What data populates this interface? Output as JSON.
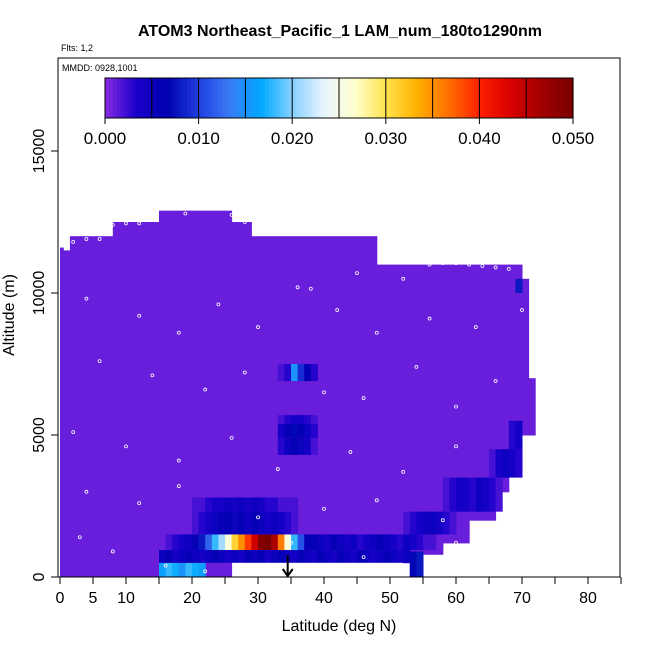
{
  "chart_data": {
    "type": "heatmap",
    "title": "ATOM3 Northeast_Pacific_1 LAM_num_180to1290nm",
    "flights_label": "Flts: 1,2",
    "date_label": "MMDD: 0928,1001",
    "xlabel": "Latitude (deg N)",
    "ylabel": "Altitude (m)",
    "xlim": [
      0,
      85
    ],
    "ylim": [
      0,
      17500
    ],
    "x_ticks": [
      0,
      5,
      10,
      20,
      30,
      40,
      50,
      60,
      70,
      80
    ],
    "x_minor_ticks": [
      15,
      25,
      35,
      45,
      55,
      65,
      75,
      85
    ],
    "y_ticks": [
      0,
      5000,
      10000,
      15000
    ],
    "colorbar": {
      "min": 0.0,
      "max": 0.05,
      "tick_values": [
        0.0,
        0.01,
        0.02,
        0.03,
        0.04,
        0.05
      ],
      "tick_labels": [
        "0.000",
        "0.010",
        "0.020",
        "0.030",
        "0.040",
        "0.050"
      ],
      "colors": [
        "#8a2be2",
        "#1a00cc",
        "#0000b0",
        "#1f3fe0",
        "#3a7bf5",
        "#00a8ff",
        "#86d0ff",
        "#e8f4ff",
        "#ffffd0",
        "#ffe34d",
        "#ffb000",
        "#ff7000",
        "#ff2000",
        "#d90000",
        "#a00000",
        "#7a0000"
      ]
    },
    "background_value": 0.001,
    "coverage": [
      {
        "lat": [
          0,
          0.5
        ],
        "alt": [
          0,
          11600
        ]
      },
      {
        "lat": [
          0.5,
          1.5
        ],
        "alt": [
          0,
          11500
        ]
      },
      {
        "lat": [
          1.5,
          8
        ],
        "alt": [
          0,
          12000
        ]
      },
      {
        "lat": [
          8,
          15
        ],
        "alt": [
          0,
          12500
        ]
      },
      {
        "lat": [
          15,
          22
        ],
        "alt": [
          0,
          12900
        ]
      },
      {
        "lat": [
          22,
          26
        ],
        "alt": [
          0,
          12900
        ]
      },
      {
        "lat": [
          26,
          29
        ],
        "alt": [
          1000,
          12500
        ]
      },
      {
        "lat": [
          29,
          35
        ],
        "alt": [
          1000,
          12000
        ]
      },
      {
        "lat": [
          35,
          40
        ],
        "alt": [
          1200,
          12000
        ]
      },
      {
        "lat": [
          40,
          48
        ],
        "alt": [
          1200,
          12000
        ]
      },
      {
        "lat": [
          48,
          52
        ],
        "alt": [
          1200,
          11000
        ]
      },
      {
        "lat": [
          52,
          55
        ],
        "alt": [
          500,
          11000
        ]
      },
      {
        "lat": [
          55,
          58
        ],
        "alt": [
          800,
          11000
        ]
      },
      {
        "lat": [
          58,
          62
        ],
        "alt": [
          1200,
          11000
        ]
      },
      {
        "lat": [
          62,
          66
        ],
        "alt": [
          2000,
          11000
        ]
      },
      {
        "lat": [
          66,
          68
        ],
        "alt": [
          3000,
          11000
        ]
      },
      {
        "lat": [
          68,
          70
        ],
        "alt": [
          4000,
          11000
        ]
      },
      {
        "lat": [
          70,
          71
        ],
        "alt": [
          5000,
          10500
        ]
      },
      {
        "lat": [
          71,
          72
        ],
        "alt": [
          5000,
          7000
        ]
      },
      {
        "lat": [
          53,
          54
        ],
        "alt": [
          0,
          500
        ]
      }
    ],
    "features": [
      {
        "lat": [
          15,
          22
        ],
        "alt": [
          0,
          500
        ],
        "values": [
          0.016,
          0.018,
          0.017,
          0.015,
          0.018,
          0.017,
          0.016
        ]
      },
      {
        "lat": [
          15,
          26
        ],
        "alt": [
          500,
          950
        ],
        "values": [
          0.005,
          0.006,
          0.004,
          0.005,
          0.006,
          0.005,
          0.004,
          0.005,
          0.006,
          0.005,
          0.004
        ]
      },
      {
        "lat": [
          26,
          53
        ],
        "alt": [
          500,
          950
        ],
        "values": [
          0.005,
          0.004,
          0.006,
          0.005,
          0.006,
          0.004,
          0.005,
          0.006,
          0.005,
          0.004,
          0.006,
          0.005,
          0.004,
          0.006,
          0.005,
          0.004,
          0.006,
          0.005,
          0.004,
          0.006,
          0.005,
          0.004,
          0.005,
          0.006,
          0.005,
          0.004,
          0.005
        ]
      },
      {
        "lat": [
          53,
          55
        ],
        "alt": [
          0,
          900
        ],
        "values": [
          0.007,
          0.008
        ]
      },
      {
        "lat": [
          15,
          24
        ],
        "alt": [
          950,
          1500
        ],
        "values": [
          0.001,
          0.002,
          0.003,
          0.004,
          0.005,
          0.006,
          0.008,
          0.012,
          0.018
        ]
      },
      {
        "lat": [
          24,
          38
        ],
        "alt": [
          950,
          1500
        ],
        "values": [
          0.021,
          0.026,
          0.031,
          0.035,
          0.039,
          0.044,
          0.049,
          0.05,
          0.046,
          0.036,
          0.026,
          0.018,
          0.011,
          0.006
        ]
      },
      {
        "lat": [
          38,
          58
        ],
        "alt": [
          950,
          1500
        ],
        "values": [
          0.006,
          0.005,
          0.004,
          0.006,
          0.005,
          0.004,
          0.005,
          0.003,
          0.004,
          0.005,
          0.006,
          0.005,
          0.004,
          0.003,
          0.005,
          0.004,
          0.003,
          0.002,
          0.002,
          0.001
        ]
      },
      {
        "lat": [
          20,
          36
        ],
        "alt": [
          1500,
          2300
        ],
        "values": [
          0.002,
          0.003,
          0.004,
          0.005,
          0.006,
          0.006,
          0.005,
          0.006,
          0.005,
          0.006,
          0.005,
          0.004,
          0.005,
          0.004,
          0.003,
          0.002
        ]
      },
      {
        "lat": [
          20,
          36
        ],
        "alt": [
          2300,
          2800
        ],
        "values": [
          0.002,
          0.002,
          0.003,
          0.004,
          0.004,
          0.005,
          0.004,
          0.005,
          0.004,
          0.005,
          0.004,
          0.003,
          0.003,
          0.002,
          0.002,
          0.002
        ]
      },
      {
        "lat": [
          52,
          60
        ],
        "alt": [
          1500,
          2300
        ],
        "values": [
          0.002,
          0.003,
          0.004,
          0.005,
          0.005,
          0.004,
          0.003,
          0.002
        ]
      },
      {
        "lat": [
          58,
          67
        ],
        "alt": [
          2300,
          3500
        ],
        "values": [
          0.002,
          0.003,
          0.004,
          0.004,
          0.003,
          0.005,
          0.004,
          0.003,
          0.002
        ]
      },
      {
        "lat": [
          65,
          70
        ],
        "alt": [
          3500,
          4500
        ],
        "values": [
          0.002,
          0.004,
          0.005,
          0.004,
          0.003
        ]
      },
      {
        "lat": [
          68,
          70
        ],
        "alt": [
          4500,
          5500
        ],
        "values": [
          0.003,
          0.004
        ]
      },
      {
        "lat": [
          33,
          39
        ],
        "alt": [
          4300,
          4900
        ],
        "values": [
          0.003,
          0.005,
          0.006,
          0.005,
          0.004,
          0.002
        ]
      },
      {
        "lat": [
          33,
          39
        ],
        "alt": [
          4900,
          5400
        ],
        "values": [
          0.004,
          0.006,
          0.007,
          0.006,
          0.005,
          0.003
        ]
      },
      {
        "lat": [
          33,
          39
        ],
        "alt": [
          5400,
          5700
        ],
        "values": [
          0.002,
          0.003,
          0.004,
          0.004,
          0.003,
          0.002
        ]
      },
      {
        "lat": [
          33,
          39
        ],
        "alt": [
          6900,
          7500
        ],
        "values": [
          0.002,
          0.003,
          0.015,
          0.009,
          0.006,
          0.003
        ]
      },
      {
        "lat": [
          69,
          70
        ],
        "alt": [
          10000,
          10500
        ],
        "values": [
          0.008
        ]
      }
    ],
    "sample_points": [
      {
        "lat": 2,
        "alt": 11800
      },
      {
        "lat": 4,
        "alt": 11900
      },
      {
        "lat": 6,
        "alt": 11900
      },
      {
        "lat": 8,
        "alt": 12400
      },
      {
        "lat": 10,
        "alt": 12450
      },
      {
        "lat": 12,
        "alt": 12450
      },
      {
        "lat": 19,
        "alt": 12800
      },
      {
        "lat": 26,
        "alt": 12750
      },
      {
        "lat": 28,
        "alt": 12500
      },
      {
        "lat": 30,
        "alt": 12400
      },
      {
        "lat": 32,
        "alt": 12300
      },
      {
        "lat": 56,
        "alt": 11000
      },
      {
        "lat": 58,
        "alt": 11050
      },
      {
        "lat": 60,
        "alt": 11050
      },
      {
        "lat": 62,
        "alt": 11000
      },
      {
        "lat": 64,
        "alt": 10950
      },
      {
        "lat": 66,
        "alt": 10900
      },
      {
        "lat": 68,
        "alt": 10850
      },
      {
        "lat": 36,
        "alt": 10200
      },
      {
        "lat": 38,
        "alt": 10150
      },
      {
        "lat": 45,
        "alt": 10700
      },
      {
        "lat": 52,
        "alt": 10500
      },
      {
        "lat": 4,
        "alt": 9800
      },
      {
        "lat": 12,
        "alt": 9200
      },
      {
        "lat": 18,
        "alt": 8600
      },
      {
        "lat": 24,
        "alt": 9600
      },
      {
        "lat": 30,
        "alt": 8800
      },
      {
        "lat": 42,
        "alt": 9400
      },
      {
        "lat": 48,
        "alt": 8600
      },
      {
        "lat": 56,
        "alt": 9100
      },
      {
        "lat": 63,
        "alt": 8800
      },
      {
        "lat": 70,
        "alt": 9400
      },
      {
        "lat": 6,
        "alt": 7600
      },
      {
        "lat": 14,
        "alt": 7100
      },
      {
        "lat": 22,
        "alt": 6600
      },
      {
        "lat": 28,
        "alt": 7200
      },
      {
        "lat": 40,
        "alt": 6500
      },
      {
        "lat": 46,
        "alt": 6300
      },
      {
        "lat": 54,
        "alt": 7400
      },
      {
        "lat": 60,
        "alt": 6000
      },
      {
        "lat": 66,
        "alt": 6900
      },
      {
        "lat": 2,
        "alt": 5100
      },
      {
        "lat": 10,
        "alt": 4600
      },
      {
        "lat": 18,
        "alt": 4100
      },
      {
        "lat": 26,
        "alt": 4900
      },
      {
        "lat": 33,
        "alt": 3800
      },
      {
        "lat": 44,
        "alt": 4400
      },
      {
        "lat": 52,
        "alt": 3700
      },
      {
        "lat": 60,
        "alt": 4600
      },
      {
        "lat": 4,
        "alt": 3000
      },
      {
        "lat": 12,
        "alt": 2600
      },
      {
        "lat": 18,
        "alt": 3200
      },
      {
        "lat": 30,
        "alt": 2100
      },
      {
        "lat": 40,
        "alt": 2400
      },
      {
        "lat": 48,
        "alt": 2700
      },
      {
        "lat": 58,
        "alt": 2000
      },
      {
        "lat": 3,
        "alt": 1400
      },
      {
        "lat": 8,
        "alt": 900
      },
      {
        "lat": 16,
        "alt": 400
      },
      {
        "lat": 22,
        "alt": 200
      },
      {
        "lat": 35,
        "alt": 1200
      },
      {
        "lat": 46,
        "alt": 700
      },
      {
        "lat": 50,
        "alt": 250
      },
      {
        "lat": 60,
        "alt": 1200
      }
    ],
    "marker": {
      "lat": 34.5,
      "alt": 0,
      "symbol": "down-arrow"
    }
  }
}
